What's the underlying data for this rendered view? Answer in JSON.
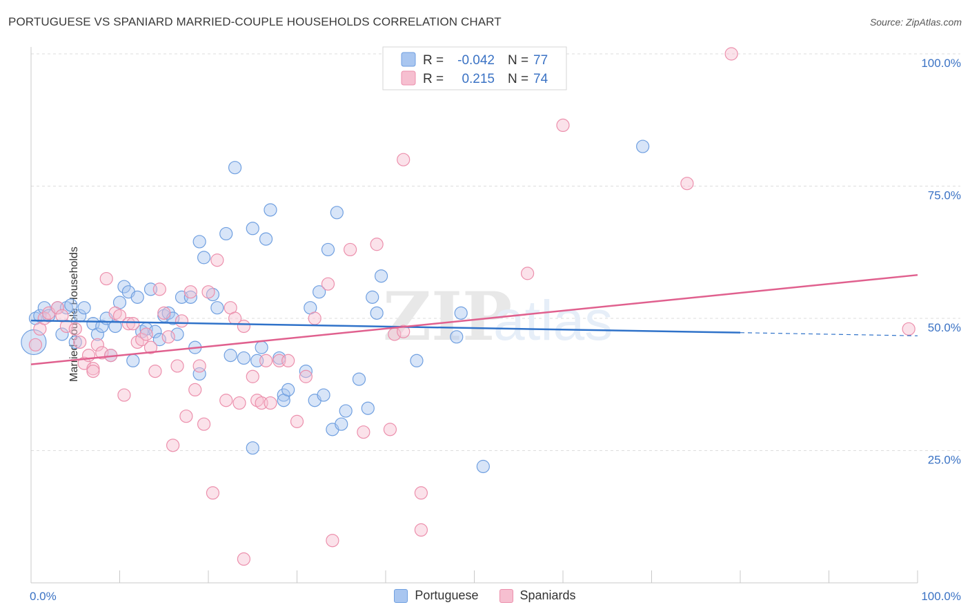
{
  "header": {
    "title": "PORTUGUESE VS SPANIARD MARRIED-COUPLE HOUSEHOLDS CORRELATION CHART",
    "source": "Source: ZipAtlas.com"
  },
  "watermark": {
    "zip": "ZIP",
    "atlas": "atlas"
  },
  "chart_data": {
    "type": "scatter",
    "title": "PORTUGUESE VS SPANIARD MARRIED-COUPLE HOUSEHOLDS CORRELATION CHART",
    "ylabel": "Married-couple Households",
    "xlabel": "",
    "xlim": [
      0,
      100
    ],
    "ylim": [
      0,
      100
    ],
    "x_tick_labels": {
      "left": "0.0%",
      "right": "100.0%"
    },
    "y_ticks": [
      25,
      50,
      75,
      100
    ],
    "y_tick_labels": [
      "25.0%",
      "50.0%",
      "75.0%",
      "100.0%"
    ],
    "grid": true,
    "legend_position": "top-center",
    "stats": [
      {
        "r_label": "R =",
        "r": "-0.042",
        "n_label": "N =",
        "n": "77"
      },
      {
        "r_label": "R =",
        "r": "0.215",
        "n_label": "N =",
        "n": "74"
      }
    ],
    "series": [
      {
        "name": "Portuguese",
        "color": "#6f9fe0",
        "fill": "#a9c6f0",
        "trend_color": "#2f72c9",
        "trend": {
          "x0": 0,
          "y0": 49.6,
          "x1": 80,
          "y1": 47.3,
          "dash_x1": 100,
          "dash_y1": 46.7
        },
        "points": [
          [
            0.3,
            45.5
          ],
          [
            0.5,
            50
          ],
          [
            1,
            50.5
          ],
          [
            1.5,
            52
          ],
          [
            2,
            50.5
          ],
          [
            3,
            52
          ],
          [
            3.5,
            47
          ],
          [
            4,
            52
          ],
          [
            4.5,
            52.5
          ],
          [
            5,
            45.5
          ],
          [
            5.5,
            50.5
          ],
          [
            6,
            52
          ],
          [
            7,
            49
          ],
          [
            7.5,
            47
          ],
          [
            8,
            48.5
          ],
          [
            8.5,
            50
          ],
          [
            9,
            43
          ],
          [
            9.5,
            48.5
          ],
          [
            10,
            53
          ],
          [
            10.5,
            56
          ],
          [
            11,
            55
          ],
          [
            11.5,
            42
          ],
          [
            12,
            54
          ],
          [
            12.5,
            47.5
          ],
          [
            13,
            48
          ],
          [
            13.5,
            55.5
          ],
          [
            14,
            47.5
          ],
          [
            14.5,
            46
          ],
          [
            15,
            50.5
          ],
          [
            15.5,
            51
          ],
          [
            16,
            50
          ],
          [
            16.5,
            47
          ],
          [
            17,
            54
          ],
          [
            18,
            54
          ],
          [
            18.5,
            44.5
          ],
          [
            19,
            39.5
          ],
          [
            19,
            64.5
          ],
          [
            19.5,
            61.5
          ],
          [
            20.5,
            54.5
          ],
          [
            21,
            52
          ],
          [
            22,
            66
          ],
          [
            22.5,
            43
          ],
          [
            23,
            78.5
          ],
          [
            24,
            42.5
          ],
          [
            25,
            67
          ],
          [
            25,
            25.5
          ],
          [
            25.5,
            42
          ],
          [
            26,
            44.5
          ],
          [
            26.5,
            65
          ],
          [
            27,
            70.5
          ],
          [
            28,
            42.5
          ],
          [
            28.5,
            35.5
          ],
          [
            28.5,
            34.5
          ],
          [
            29,
            36.5
          ],
          [
            31,
            40
          ],
          [
            31.5,
            52
          ],
          [
            32,
            34.5
          ],
          [
            32.5,
            55
          ],
          [
            33,
            35.5
          ],
          [
            33.5,
            63
          ],
          [
            34,
            29
          ],
          [
            34.5,
            70
          ],
          [
            35,
            30
          ],
          [
            35.5,
            32.5
          ],
          [
            37,
            38.5
          ],
          [
            38,
            33
          ],
          [
            38.5,
            54
          ],
          [
            39,
            51
          ],
          [
            39.5,
            58
          ],
          [
            43.5,
            42
          ],
          [
            48,
            46.5
          ],
          [
            48.5,
            51
          ],
          [
            51,
            22
          ],
          [
            69,
            82.5
          ]
        ]
      },
      {
        "name": "Spaniards",
        "color": "#ec8fac",
        "fill": "#f6bfd0",
        "trend_color": "#e0608e",
        "trend": {
          "x0": 0,
          "y0": 41.3,
          "x1": 100,
          "y1": 58.2
        },
        "points": [
          [
            0.5,
            45
          ],
          [
            1,
            48
          ],
          [
            1.5,
            50
          ],
          [
            2,
            51
          ],
          [
            3,
            52
          ],
          [
            3.5,
            50.5
          ],
          [
            4,
            48.5
          ],
          [
            5,
            48
          ],
          [
            5.5,
            45.5
          ],
          [
            6,
            41.5
          ],
          [
            6.5,
            43
          ],
          [
            7,
            40.5
          ],
          [
            7,
            40
          ],
          [
            7.5,
            45
          ],
          [
            8,
            43.5
          ],
          [
            8.5,
            57.5
          ],
          [
            9,
            43
          ],
          [
            9.5,
            51
          ],
          [
            10,
            50.5
          ],
          [
            10.5,
            35.5
          ],
          [
            11,
            49
          ],
          [
            11.5,
            49
          ],
          [
            12,
            45.5
          ],
          [
            12.5,
            46
          ],
          [
            13,
            47
          ],
          [
            13.5,
            44.5
          ],
          [
            14,
            40
          ],
          [
            14.5,
            55.5
          ],
          [
            15,
            51
          ],
          [
            15.5,
            46.5
          ],
          [
            16,
            26
          ],
          [
            16.5,
            41
          ],
          [
            17,
            49.5
          ],
          [
            17.5,
            31.5
          ],
          [
            18,
            55
          ],
          [
            18.5,
            36.5
          ],
          [
            19,
            41
          ],
          [
            19.5,
            30
          ],
          [
            20,
            55
          ],
          [
            20.5,
            17
          ],
          [
            21,
            61
          ],
          [
            22,
            34.5
          ],
          [
            22.5,
            52
          ],
          [
            23,
            50
          ],
          [
            23.5,
            34
          ],
          [
            24,
            48.5
          ],
          [
            24,
            4.5
          ],
          [
            25,
            39
          ],
          [
            25.5,
            34.5
          ],
          [
            26,
            34
          ],
          [
            26.5,
            42
          ],
          [
            27,
            34
          ],
          [
            28,
            42
          ],
          [
            29,
            42
          ],
          [
            30,
            30.5
          ],
          [
            31,
            39
          ],
          [
            32,
            50
          ],
          [
            33.5,
            56.5
          ],
          [
            34,
            8
          ],
          [
            36,
            63
          ],
          [
            37.5,
            28.5
          ],
          [
            39,
            64
          ],
          [
            40.5,
            29
          ],
          [
            41,
            47
          ],
          [
            42,
            80
          ],
          [
            42,
            47.5
          ],
          [
            44,
            17
          ],
          [
            44,
            10
          ],
          [
            56,
            58.5
          ],
          [
            60,
            86.5
          ],
          [
            74,
            75.5
          ],
          [
            79,
            100
          ],
          [
            99,
            48
          ]
        ]
      }
    ]
  }
}
